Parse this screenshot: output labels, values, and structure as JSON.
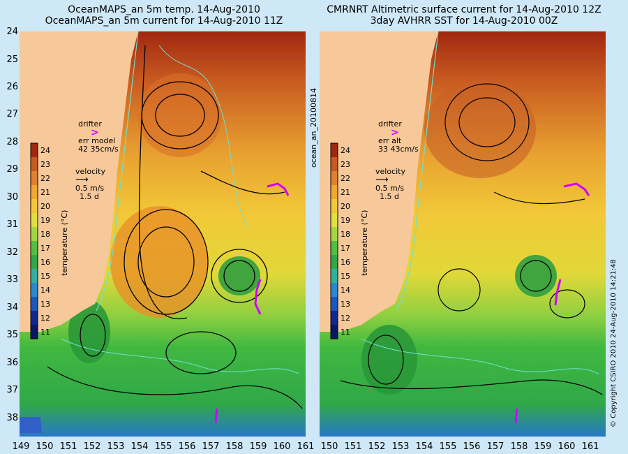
{
  "left_panel": {
    "title_line1": "OceanMAPS_an 5m temp. 14-Aug-2010",
    "title_line2": "OceanMAPS_an 5m current for 14-Aug-2010 11Z",
    "drifter_label": "drifter",
    "err_label": "err model",
    "err_value": "42 35cm/s",
    "velocity_label": "velocity",
    "velocity_scale": "0.5 m/s",
    "velocity_time": "1.5 d"
  },
  "right_panel": {
    "title_line1": "CMRNRT Altimetric surface current for 14-Aug-2010 12Z",
    "title_line2": "3day AVHRR SST for 14-Aug-2010 00Z",
    "drifter_label": "drifter",
    "err_label": "err alt",
    "err_value": "33 43cm/s",
    "velocity_label": "velocity",
    "velocity_scale": "0.5 m/s",
    "velocity_time": "1.5 d"
  },
  "colorbar": {
    "label": "temperature (°C)",
    "ticks": [
      "24",
      "23",
      "22",
      "21",
      "20",
      "19",
      "18",
      "17",
      "16",
      "15",
      "14",
      "13",
      "12",
      "11"
    ]
  },
  "axes": {
    "lat_ticks": [
      "24",
      "25",
      "26",
      "27",
      "28",
      "29",
      "30",
      "31",
      "32",
      "33",
      "34",
      "35",
      "36",
      "37",
      "38"
    ],
    "lon_ticks": [
      "149",
      "150",
      "151",
      "152",
      "153",
      "154",
      "155",
      "156",
      "157",
      "158",
      "159",
      "160",
      "161"
    ]
  },
  "side_label": "ocean_an_20100814",
  "copyright": "© Copyright CSIRO 2010   24-Aug-2010 14:21:48",
  "colors": {
    "land": "#f7c99a",
    "coast_contour": "#6fe0d0",
    "drifter": "#d000ff"
  }
}
